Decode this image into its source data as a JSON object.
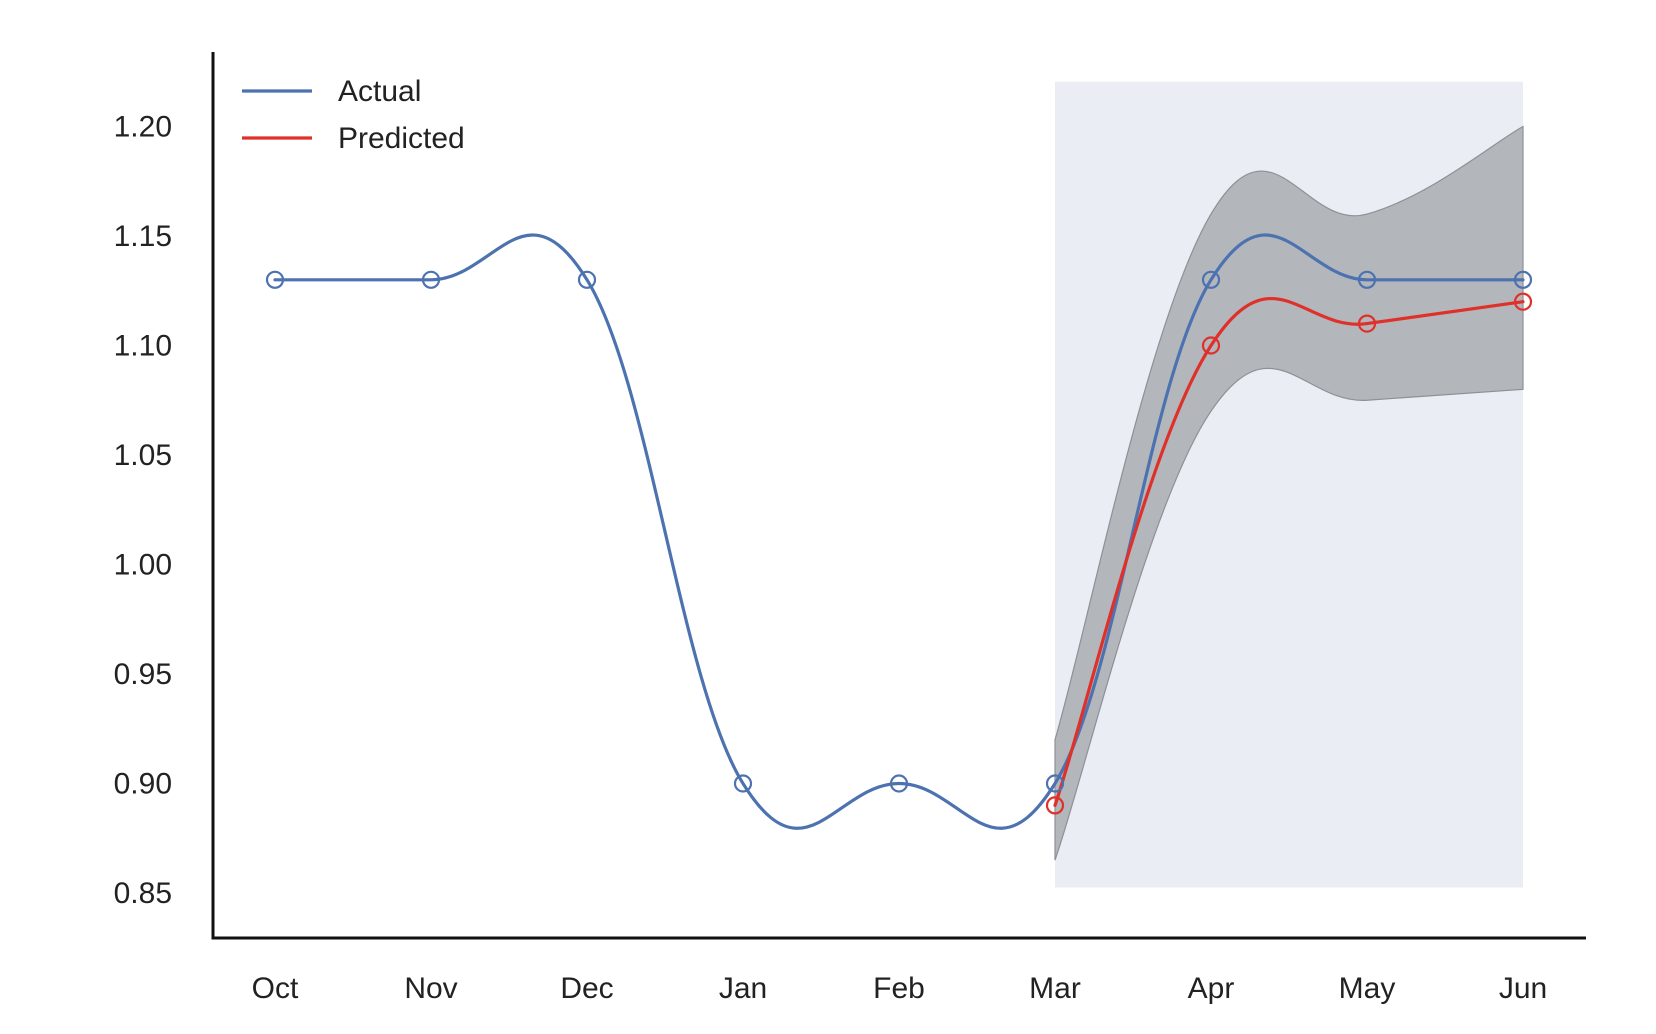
{
  "chart_data": {
    "type": "line",
    "categories": [
      "Oct",
      "Nov",
      "Dec",
      "Jan",
      "Feb",
      "Mar",
      "Apr",
      "May",
      "Jun"
    ],
    "ylim": [
      0.85,
      1.22
    ],
    "yticks": [
      "0.85",
      "0.90",
      "0.95",
      "1.00",
      "1.05",
      "1.10",
      "1.15",
      "1.20"
    ],
    "grid": false,
    "legend_position": "top-left",
    "shaded_region": {
      "from": "Mar",
      "to": "Jun",
      "color": "#eaedf4"
    },
    "series": [
      {
        "name": "Actual",
        "color": "#4c72b0",
        "x": [
          "Oct",
          "Nov",
          "Dec",
          "Jan",
          "Feb",
          "Mar",
          "Apr",
          "May",
          "Jun"
        ],
        "values": [
          1.13,
          1.13,
          1.13,
          0.9,
          0.9,
          0.9,
          1.13,
          1.13,
          1.13
        ]
      },
      {
        "name": "Predicted",
        "color": "#e0302a",
        "x": [
          "Mar",
          "Apr",
          "May",
          "Jun"
        ],
        "values": [
          0.89,
          1.1,
          1.11,
          1.12
        ],
        "band_lower": [
          0.865,
          1.07,
          1.075,
          1.08
        ],
        "band_upper": [
          0.92,
          1.16,
          1.16,
          1.2
        ],
        "band_color": "#a9abb0"
      }
    ],
    "title": "",
    "xlabel": "",
    "ylabel": ""
  }
}
